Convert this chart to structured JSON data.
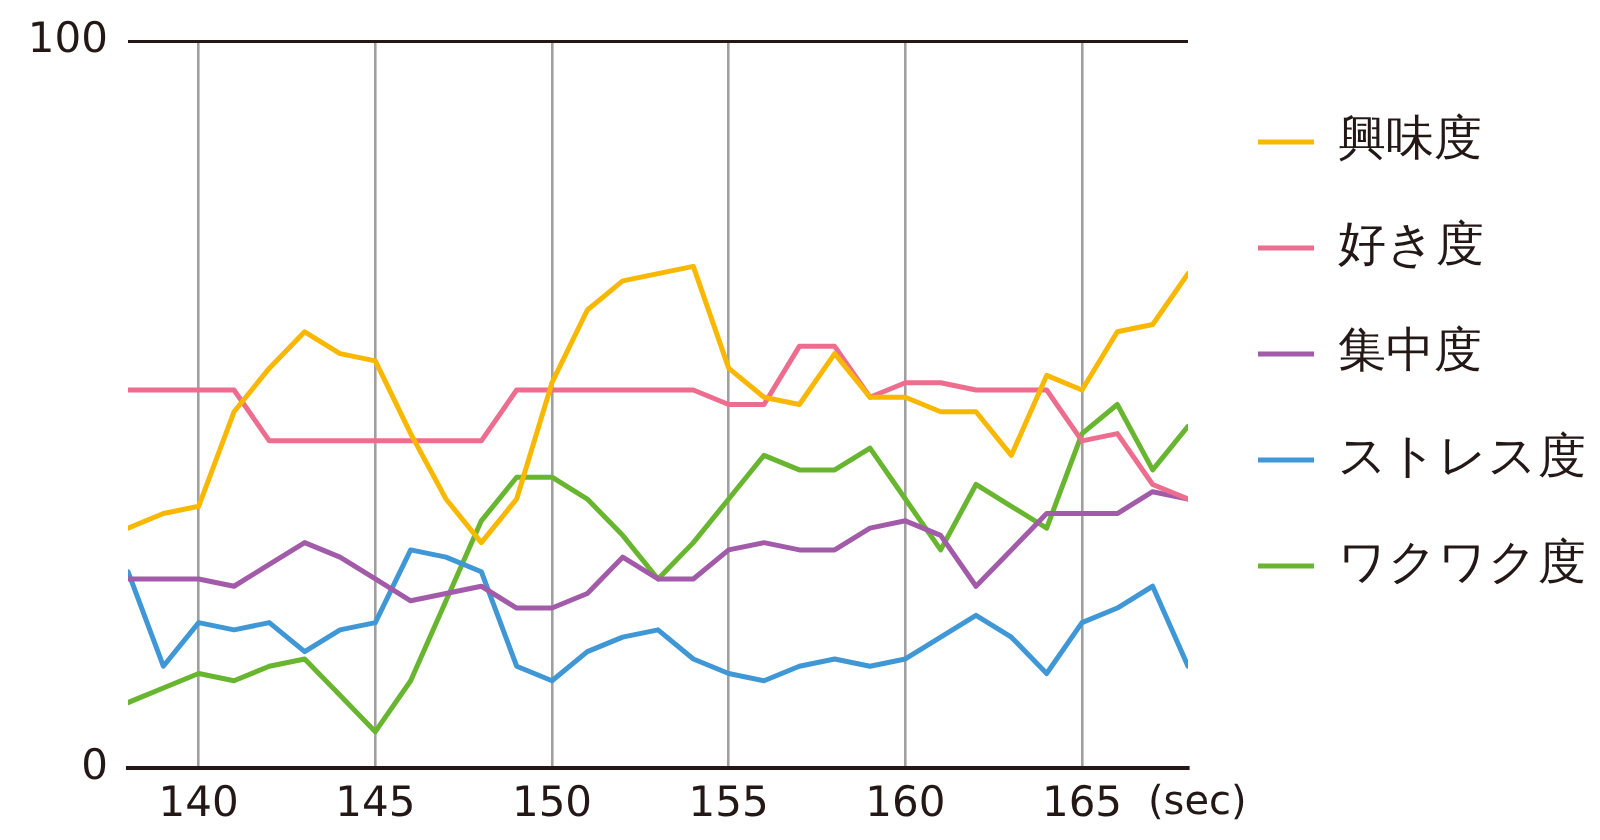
{
  "chart_data": {
    "type": "line",
    "xlabel": "(sec)",
    "x": [
      138,
      139,
      140,
      141,
      142,
      143,
      144,
      145,
      146,
      147,
      148,
      149,
      150,
      151,
      152,
      153,
      154,
      155,
      156,
      157,
      158,
      159,
      160,
      161,
      162,
      163,
      164,
      165,
      166,
      167,
      168
    ],
    "xlim": [
      138,
      168
    ],
    "xticks": [
      140,
      145,
      150,
      155,
      160,
      165
    ],
    "ylim": [
      0,
      100
    ],
    "yticks": [
      0,
      100
    ],
    "grid": true,
    "legend": "right",
    "series": [
      {
        "name": "興味度",
        "color": "#f9b800",
        "values": [
          33,
          35,
          36,
          49,
          55,
          60,
          57,
          56,
          46,
          37,
          31,
          37,
          53,
          63,
          67,
          68,
          69,
          55,
          51,
          50,
          57,
          51,
          51,
          49,
          49,
          43,
          54,
          52,
          60,
          61,
          68
        ]
      },
      {
        "name": "好き度",
        "color": "#ed6d8f",
        "values": [
          52,
          52,
          52,
          52,
          45,
          45,
          45,
          45,
          45,
          45,
          45,
          52,
          52,
          52,
          52,
          52,
          52,
          50,
          50,
          58,
          58,
          51,
          53,
          53,
          52,
          52,
          52,
          45,
          46,
          39,
          37
        ]
      },
      {
        "name": "集中度",
        "color": "#a25ba8",
        "values": [
          26,
          26,
          26,
          25,
          28,
          31,
          29,
          26,
          23,
          24,
          25,
          22,
          22,
          24,
          29,
          26,
          26,
          30,
          31,
          30,
          30,
          33,
          34,
          32,
          25,
          30,
          35,
          35,
          35,
          38,
          37
        ]
      },
      {
        "name": "ストレス度",
        "color": "#3f97d6",
        "values": [
          27,
          14,
          20,
          19,
          20,
          16,
          19,
          20,
          30,
          29,
          27,
          14,
          12,
          16,
          18,
          19,
          15,
          13,
          12,
          14,
          15,
          14,
          15,
          18,
          21,
          18,
          13,
          20,
          22,
          25,
          14
        ]
      },
      {
        "name": "ワクワク度",
        "color": "#68b52f",
        "values": [
          9,
          11,
          13,
          12,
          14,
          15,
          10,
          5,
          12,
          23,
          34,
          40,
          40,
          37,
          32,
          26,
          31,
          37,
          43,
          41,
          41,
          44,
          37,
          30,
          39,
          36,
          33,
          46,
          50,
          41,
          47
        ]
      }
    ]
  }
}
